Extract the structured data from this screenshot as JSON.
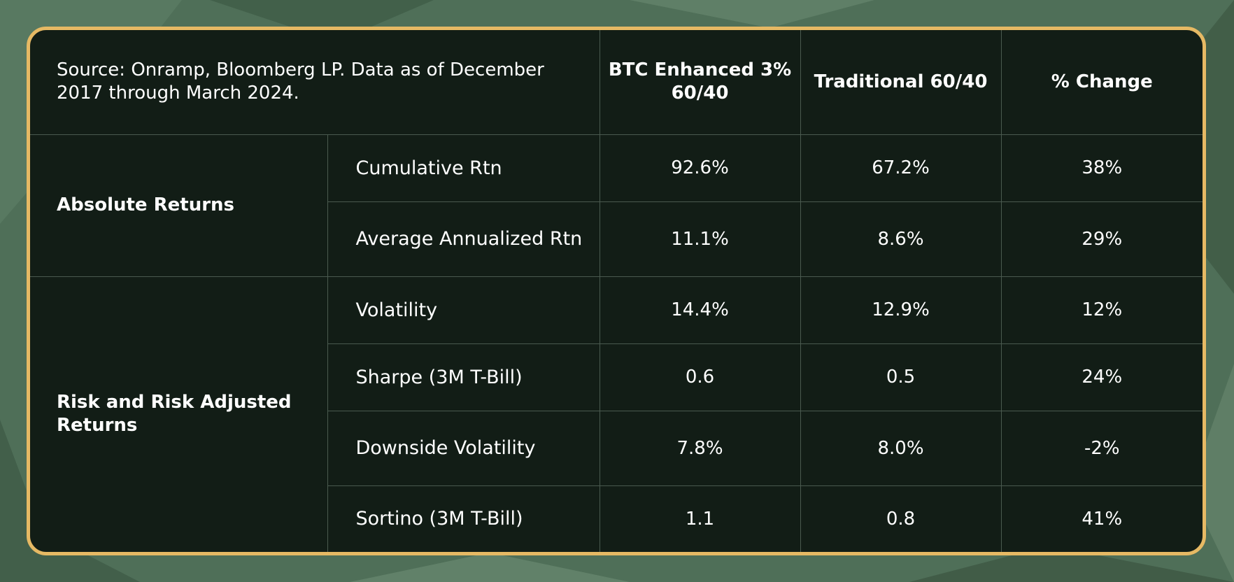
{
  "colors": {
    "card_background": "#121d16",
    "border_accent": "#e6b964",
    "backdrop": "#4f6f58",
    "text": "#ffffff",
    "grid_lines": "#4a5a4f"
  },
  "chart_data": {
    "type": "table",
    "source_note": "Source: Onramp, Bloomberg LP. Data as of December 2017 through March 2024.",
    "columns": [
      {
        "label": "BTC Enhanced 3% 60/40"
      },
      {
        "label": "Traditional 60/40"
      },
      {
        "label": "% Change"
      }
    ],
    "groups": [
      {
        "label": "Absolute Returns",
        "rows": [
          {
            "metric": "Cumulative Rtn",
            "values": [
              "92.6%",
              "67.2%",
              "38%"
            ]
          },
          {
            "metric": "Average Annualized Rtn",
            "values": [
              "11.1%",
              "8.6%",
              "29%"
            ]
          }
        ]
      },
      {
        "label": "Risk and Risk Adjusted Returns",
        "rows": [
          {
            "metric": "Volatility",
            "values": [
              "14.4%",
              "12.9%",
              "12%"
            ]
          },
          {
            "metric": "Sharpe (3M T-Bill)",
            "values": [
              "0.6",
              "0.5",
              "24%"
            ]
          },
          {
            "metric": "Downside Volatility",
            "values": [
              "7.8%",
              "8.0%",
              "-2%"
            ]
          },
          {
            "metric": "Sortino (3M T-Bill)",
            "values": [
              "1.1",
              "0.8",
              "41%"
            ]
          }
        ]
      }
    ]
  }
}
